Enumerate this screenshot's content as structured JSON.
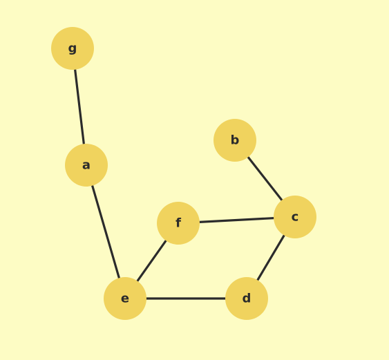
{
  "graph": {
    "nodes": [
      {
        "id": "g",
        "label": "g"
      },
      {
        "id": "a",
        "label": "a"
      },
      {
        "id": "b",
        "label": "b"
      },
      {
        "id": "c",
        "label": "c"
      },
      {
        "id": "f",
        "label": "f"
      },
      {
        "id": "e",
        "label": "e"
      },
      {
        "id": "d",
        "label": "d"
      }
    ],
    "edges": [
      {
        "source": "g",
        "target": "a"
      },
      {
        "source": "a",
        "target": "e"
      },
      {
        "source": "b",
        "target": "c"
      },
      {
        "source": "f",
        "target": "c"
      },
      {
        "source": "c",
        "target": "d"
      },
      {
        "source": "e",
        "target": "f"
      },
      {
        "source": "e",
        "target": "d"
      }
    ]
  },
  "colors": {
    "background": "#fdfcc4",
    "node_fill": "#f0d35e",
    "edge": "#2b2b2b",
    "label": "#2b2b2b"
  }
}
